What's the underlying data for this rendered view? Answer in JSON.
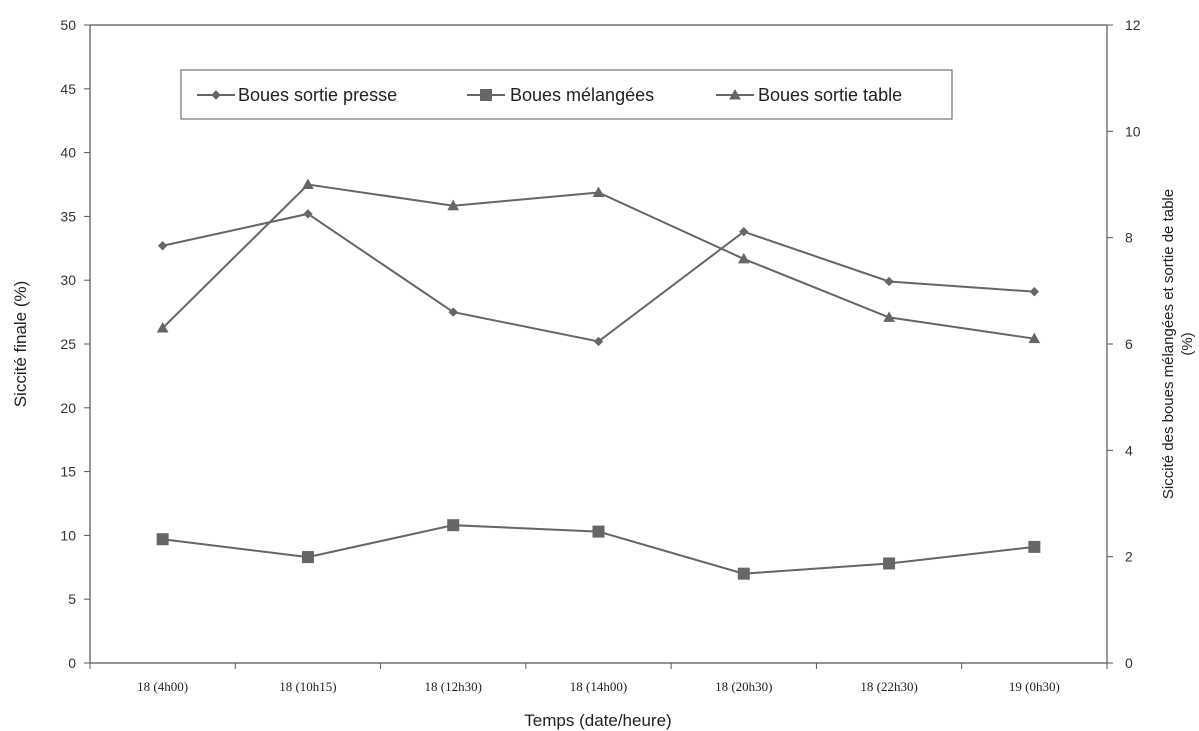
{
  "chart_data": {
    "type": "line",
    "xlabel": "Temps (date/heure)",
    "ylabel": "Siccité finale (%)",
    "y2label_line1": "Siccité des boues mélangées et sortie de table",
    "y2label_line2": "(%)",
    "categories": [
      "18 (4h00)",
      "18 (10h15)",
      "18 (12h30)",
      "18 (14h00)",
      "18 (20h30)",
      "18 (22h30)",
      "19 (0h30)"
    ],
    "ylim": [
      0,
      50
    ],
    "yticks": [
      0,
      5,
      10,
      15,
      20,
      25,
      30,
      35,
      40,
      45,
      50
    ],
    "y2lim": [
      0,
      12
    ],
    "y2ticks": [
      0,
      2,
      4,
      6,
      8,
      10,
      12
    ],
    "grid": false,
    "legend_position": "top",
    "series": [
      {
        "name": "Boues sortie presse",
        "axis": "left",
        "marker": "diamond",
        "values": [
          32.7,
          35.2,
          27.5,
          25.2,
          33.8,
          29.9,
          29.1
        ]
      },
      {
        "name": "Boues mélangées",
        "axis": "left",
        "marker": "square",
        "values": [
          9.7,
          8.3,
          10.8,
          10.3,
          7.0,
          7.8,
          9.1
        ]
      },
      {
        "name": "Boues sortie table",
        "axis": "right",
        "marker": "triangle",
        "values": [
          6.3,
          9.0,
          8.6,
          8.85,
          7.6,
          6.5,
          6.1
        ]
      }
    ]
  }
}
